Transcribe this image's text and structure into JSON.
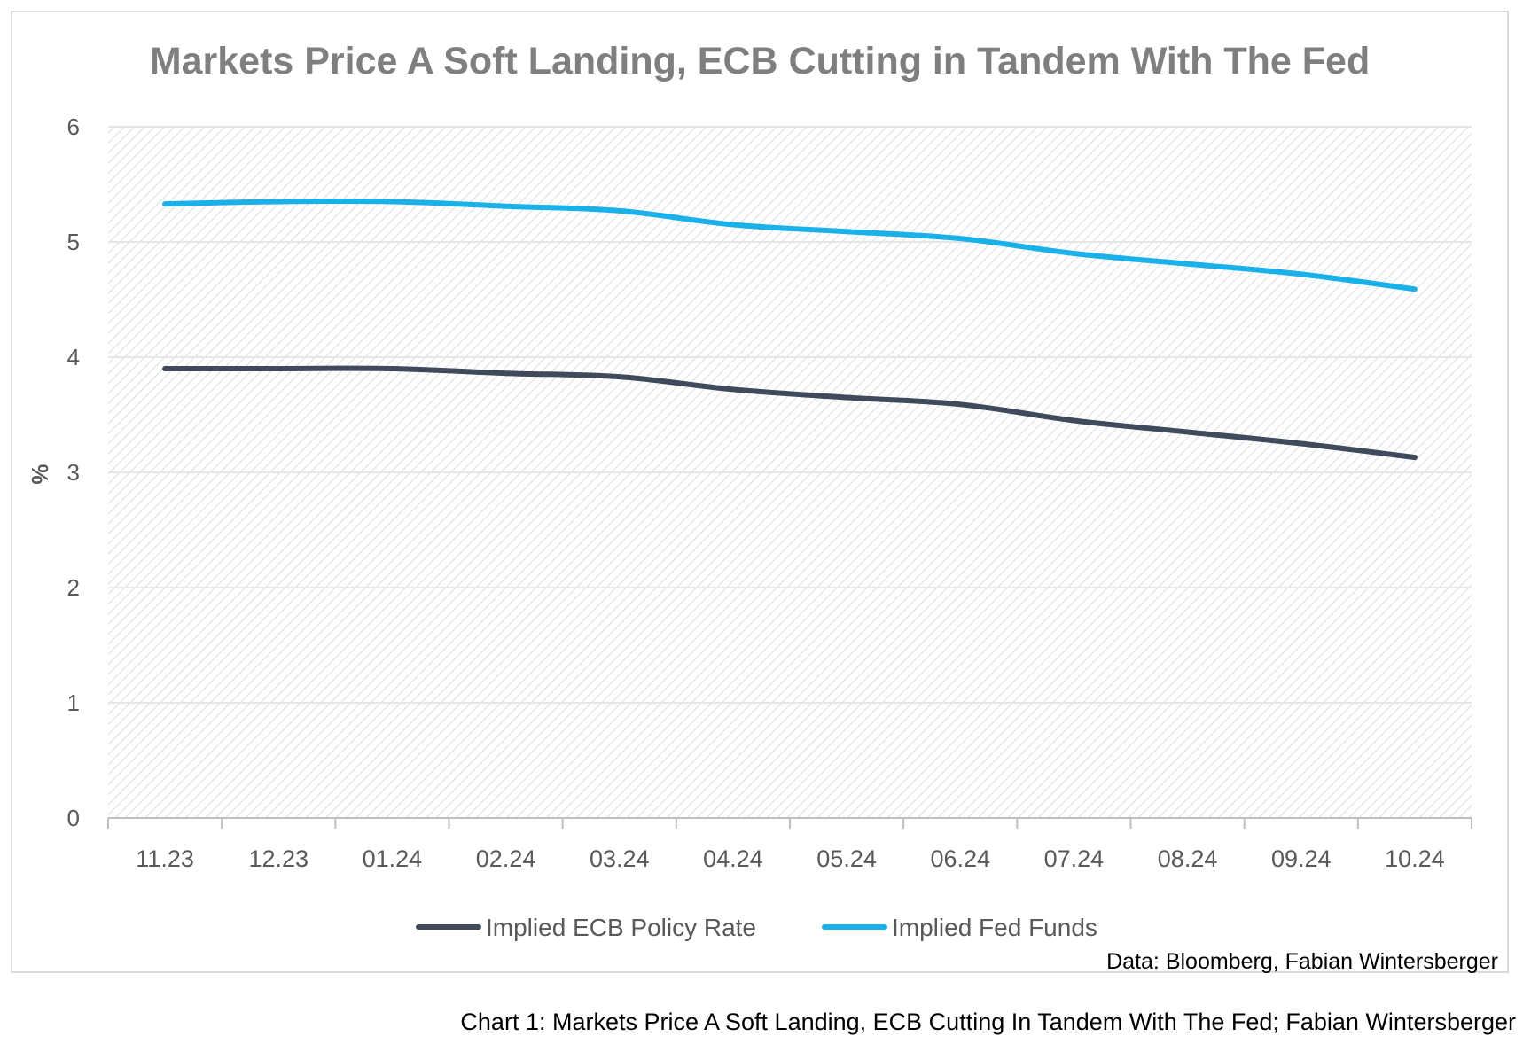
{
  "chart_data": {
    "type": "line",
    "title": "Markets Price A Soft Landing, ECB Cutting in Tandem With The Fed",
    "xlabel": "",
    "ylabel": "%",
    "ylim": [
      0,
      6
    ],
    "yticks": [
      "0",
      "1",
      "2",
      "3",
      "4",
      "5",
      "6"
    ],
    "categories": [
      "11.23",
      "12.23",
      "01.24",
      "02.24",
      "03.24",
      "04.24",
      "05.24",
      "06.24",
      "07.24",
      "08.24",
      "09.24",
      "10.24"
    ],
    "series": [
      {
        "name": "Implied ECB Policy Rate",
        "color": "#3f4b5c",
        "values": [
          3.9,
          3.9,
          3.9,
          3.86,
          3.83,
          3.72,
          3.65,
          3.59,
          3.45,
          3.35,
          3.25,
          3.13
        ]
      },
      {
        "name": "Implied Fed Funds",
        "color": "#1ab0ea",
        "values": [
          5.33,
          5.35,
          5.35,
          5.31,
          5.27,
          5.15,
          5.09,
          5.03,
          4.9,
          4.81,
          4.72,
          4.59
        ]
      }
    ],
    "grid": true,
    "legend_position": "bottom",
    "source_note": "Data: Bloomberg, Fabian Wintersberger"
  },
  "caption": "Chart 1: Markets Price A Soft Landing, ECB Cutting In Tandem With The Fed; Fabian Wintersberger"
}
